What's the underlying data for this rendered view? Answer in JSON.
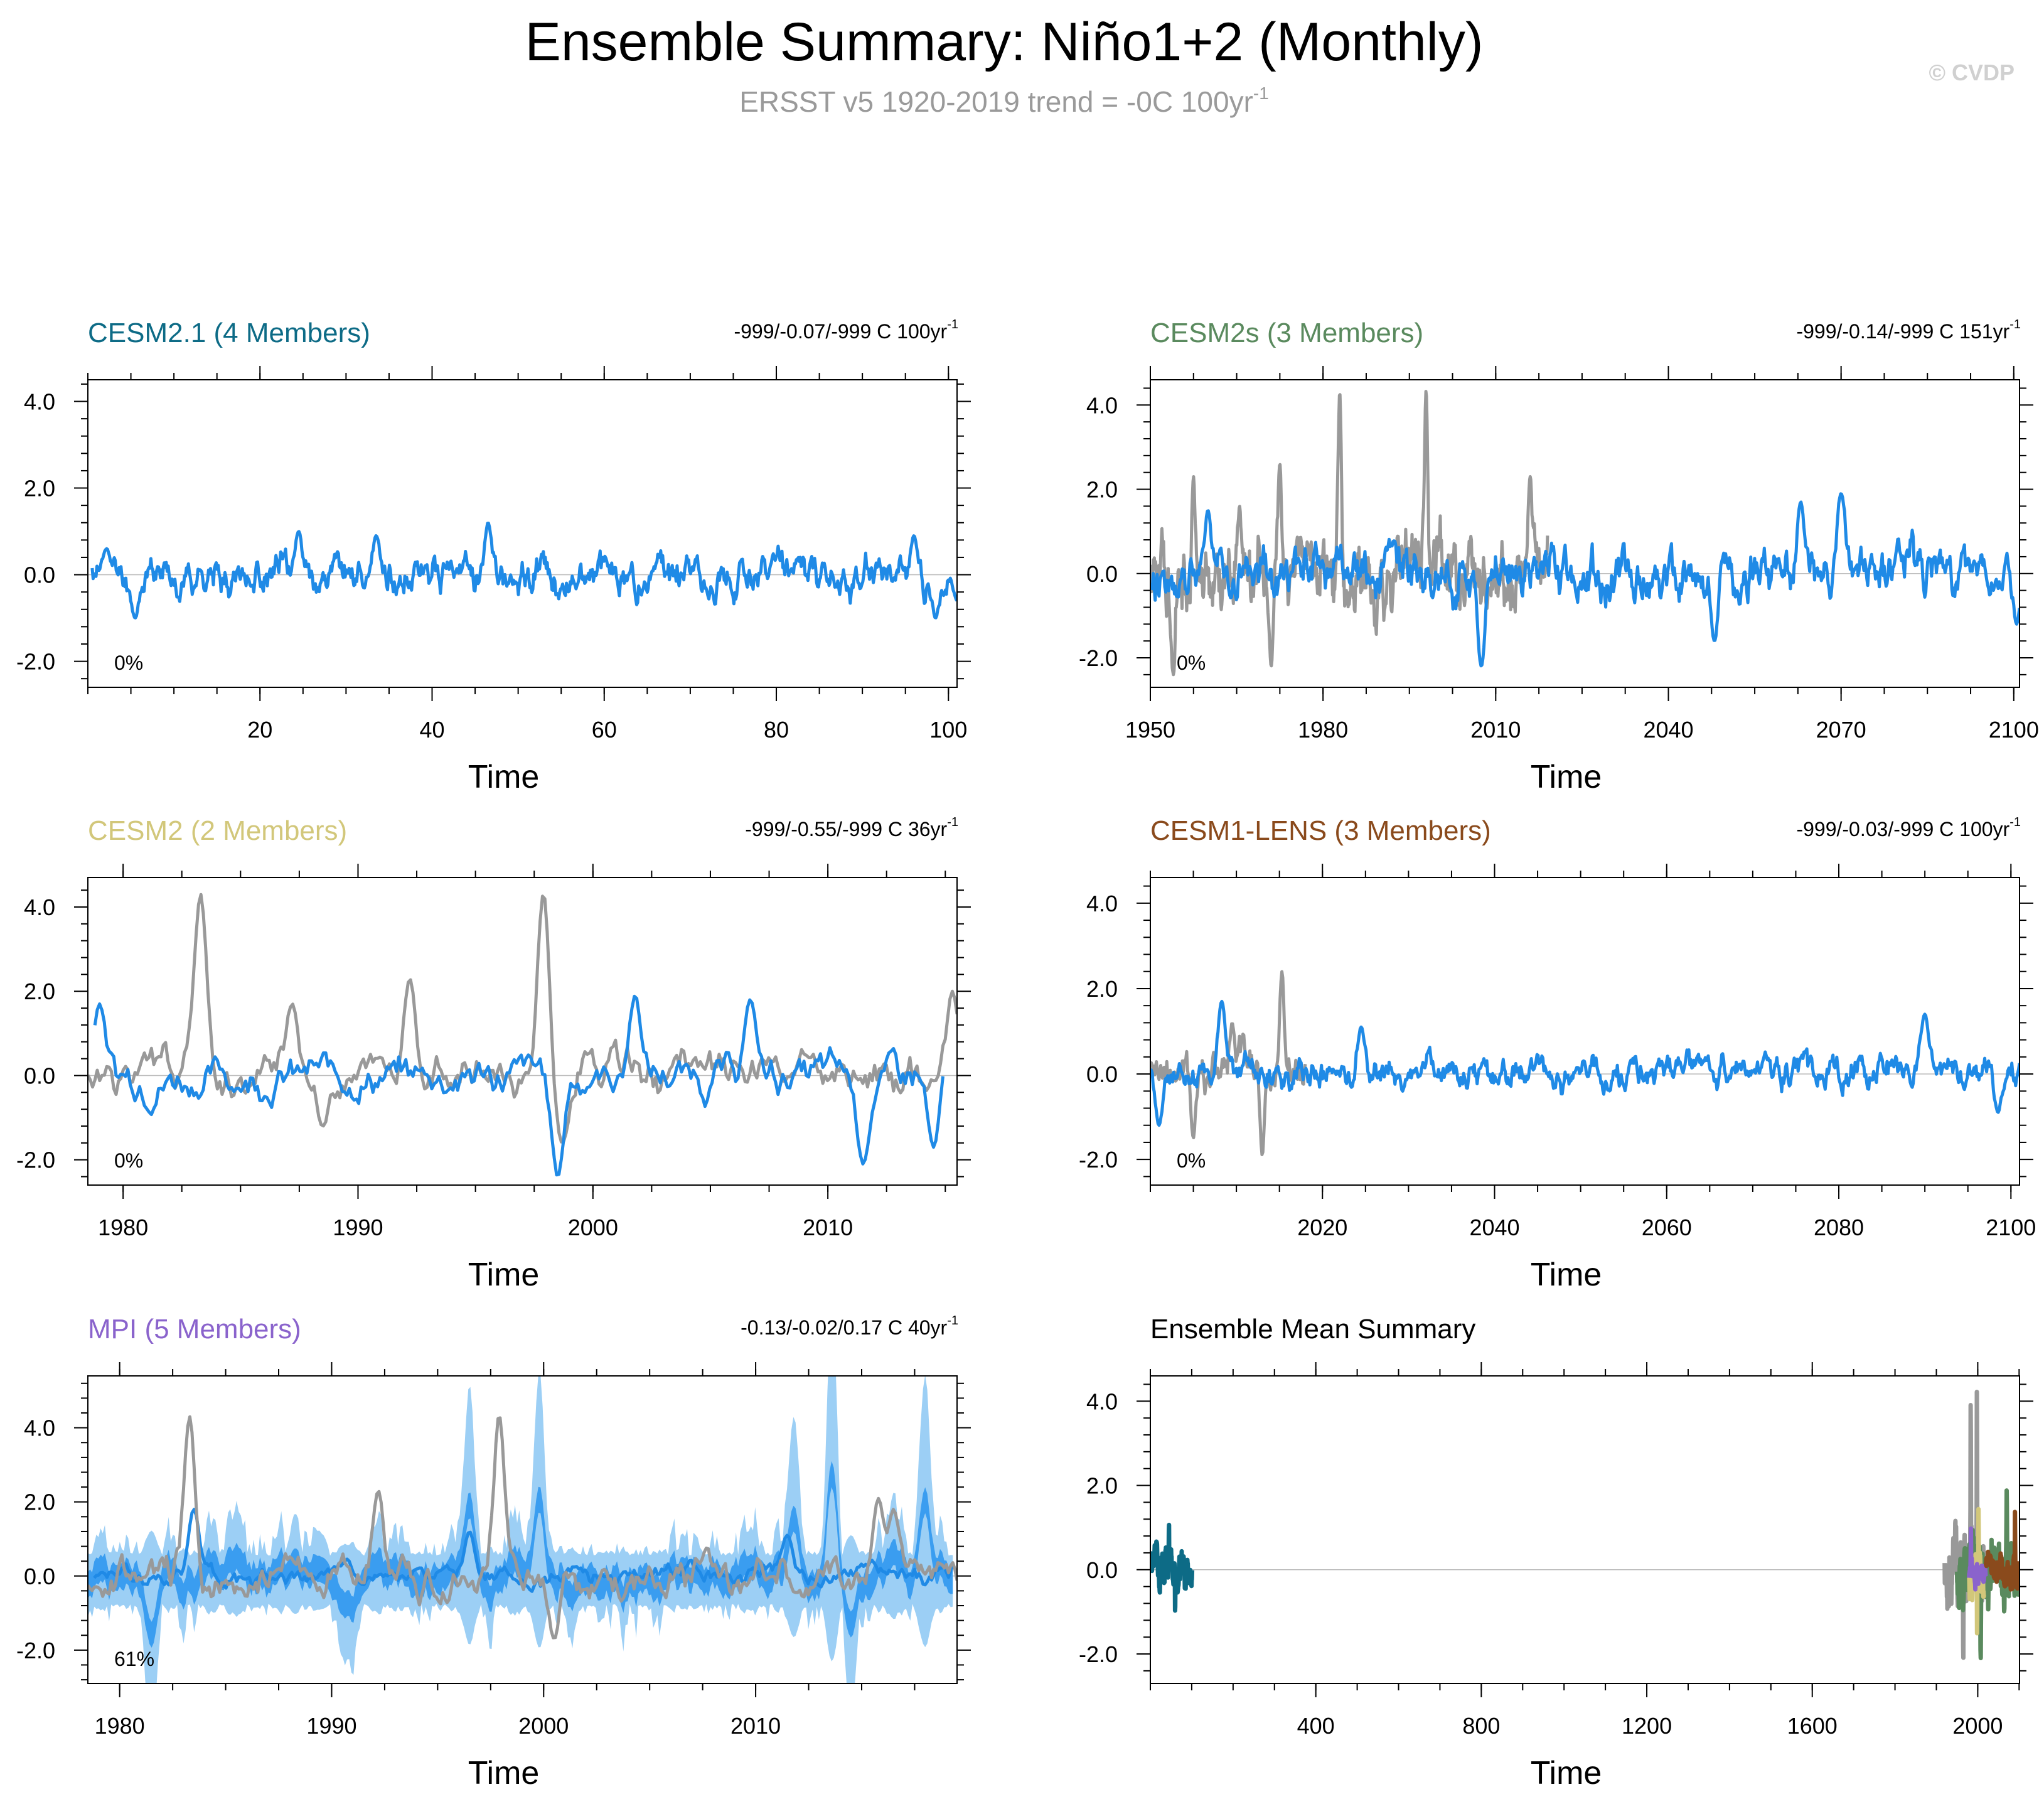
{
  "title": "Ensemble Summary: Niño1+2 (Monthly)",
  "subtitle": "ERSST v5 1920-2019 trend = -0C 100yr",
  "subtitle_sup": "-1",
  "copyright": "© CVDP",
  "colors": {
    "obs": "#999999",
    "model": "#1f8ae6",
    "spread": "#9ccff5",
    "spread_dark": "#3a9df0"
  },
  "chart_data": [
    {
      "type": "line",
      "id": "cesm21",
      "title": "CESM2.1 (4 Members)",
      "title_color": "#0d6b86",
      "trend": "-999/-0.07/-999 C 100yr",
      "trend_sup": "-1",
      "pct": "0%",
      "xlabel": "Time",
      "xlim": [
        0,
        101
      ],
      "ylim": [
        -2.6,
        4.5
      ],
      "xticks": [
        20,
        40,
        60,
        80,
        100
      ],
      "xtick_labels": [
        "20",
        "40",
        "60",
        "80",
        "100"
      ],
      "yticks": [
        -2,
        0,
        2,
        4
      ],
      "ytick_labels": [
        "-2.0",
        "0.0",
        "2.0",
        "4.0"
      ],
      "series": [
        {
          "name": "model",
          "color": "#1f8ae6",
          "x_start": 0.5,
          "x_end": 101,
          "amp": 0.42,
          "seed": 11,
          "peaks": [
            [
              46.5,
              1.2
            ],
            [
              24.5,
              1.0
            ],
            [
              33.5,
              0.9
            ],
            [
              96,
              0.9
            ],
            [
              2.2,
              0.6
            ],
            [
              98.5,
              -1.0
            ],
            [
              5.5,
              -1.0
            ],
            [
              101,
              -0.6
            ]
          ]
        }
      ]
    },
    {
      "type": "line",
      "id": "cesm2s",
      "title": "CESM2s (3 Members)",
      "title_color": "#5a8a5e",
      "trend": "-999/-0.14/-999 C 151yr",
      "trend_sup": "-1",
      "pct": "0%",
      "xlabel": "Time",
      "xlim": [
        1950,
        2101
      ],
      "ylim": [
        -2.7,
        4.6
      ],
      "xticks": [
        1950,
        1980,
        2010,
        2040,
        2070,
        2100
      ],
      "xtick_labels": [
        "1950",
        "1980",
        "2010",
        "2040",
        "2070",
        "2100"
      ],
      "yticks": [
        -2,
        0,
        2,
        4
      ],
      "ytick_labels": [
        "-2.0",
        "0.0",
        "2.0",
        "4.0"
      ],
      "series": [
        {
          "name": "obs",
          "color": "#999999",
          "x_start": 1950,
          "x_end": 2019,
          "amp": 0.85,
          "seed": 21,
          "peaks": [
            [
              1982.9,
              4.3
            ],
            [
              1997.9,
              4.35
            ],
            [
              1972.5,
              2.6
            ],
            [
              1957.5,
              2.3
            ],
            [
              2016,
              2.3
            ],
            [
              1965.5,
              1.6
            ],
            [
              1954,
              -2.4
            ],
            [
              1971,
              -2.2
            ]
          ]
        },
        {
          "name": "model",
          "color": "#1f8ae6",
          "x_start": 1950,
          "x_end": 2101,
          "amp": 0.62,
          "seed": 22,
          "peaks": [
            [
              1960,
              1.5
            ],
            [
              2070,
              1.9
            ],
            [
              2063,
              1.7
            ],
            [
              2007.5,
              -2.2
            ],
            [
              2048,
              -1.6
            ],
            [
              2100.5,
              -1.2
            ]
          ]
        }
      ]
    },
    {
      "type": "line",
      "id": "cesm2",
      "title": "CESM2 (2 Members)",
      "title_color": "#d2c77a",
      "trend": "-999/-0.55/-999 C 36yr",
      "trend_sup": "-1",
      "pct": "0%",
      "xlabel": "Time",
      "xlim": [
        1978.5,
        2015.5
      ],
      "ylim": [
        -2.6,
        4.7
      ],
      "xticks": [
        1980,
        1990,
        2000,
        2010
      ],
      "xtick_labels": [
        "1980",
        "1990",
        "2000",
        "2010"
      ],
      "yticks": [
        -2,
        0,
        2,
        4
      ],
      "ytick_labels": [
        "-2.0",
        "0.0",
        "2.0",
        "4.0"
      ],
      "series": [
        {
          "name": "obs",
          "color": "#999999",
          "x_start": 1978.5,
          "x_end": 2015.5,
          "amp": 0.55,
          "seed": 31,
          "peaks": [
            [
              1983.3,
              4.3
            ],
            [
              1997.9,
              4.35
            ],
            [
              1992.2,
              2.3
            ],
            [
              1987.2,
              1.7
            ],
            [
              2015.3,
              2.0
            ],
            [
              1998.7,
              -1.6
            ],
            [
              1988.5,
              -1.2
            ]
          ]
        },
        {
          "name": "model",
          "color": "#1f8ae6",
          "x_start": 1978.8,
          "x_end": 2014.9,
          "amp": 0.5,
          "seed": 32,
          "peaks": [
            [
              1979,
              1.7
            ],
            [
              2001.8,
              1.9
            ],
            [
              2006.7,
              1.8
            ],
            [
              1998.5,
              -2.4
            ],
            [
              2014.5,
              -1.7
            ],
            [
              2011.5,
              -2.1
            ]
          ]
        }
      ]
    },
    {
      "type": "line",
      "id": "cesm1lens",
      "title": "CESM1-LENS (3 Members)",
      "title_color": "#8a4a1c",
      "trend": "-999/-0.03/-999 C 100yr",
      "trend_sup": "-1",
      "pct": "0%",
      "xlabel": "Time",
      "xlim": [
        2000,
        2101
      ],
      "ylim": [
        -2.6,
        4.6
      ],
      "xticks": [
        2020,
        2040,
        2060,
        2080,
        2100
      ],
      "xtick_labels": [
        "2020",
        "2040",
        "2060",
        "2080",
        "2100"
      ],
      "yticks": [
        -2,
        0,
        2,
        4
      ],
      "ytick_labels": [
        "-2.0",
        "0.0",
        "2.0",
        "4.0"
      ],
      "series": [
        {
          "name": "obs",
          "color": "#999999",
          "x_start": 2000,
          "x_end": 2018,
          "amp": 0.55,
          "seed": 41,
          "peaks": [
            [
              2015.3,
              2.4
            ],
            [
              2009.5,
              1.2
            ],
            [
              2013,
              -1.9
            ],
            [
              2005,
              -1.5
            ]
          ]
        },
        {
          "name": "model",
          "color": "#1f8ae6",
          "x_start": 2000,
          "x_end": 2101,
          "amp": 0.38,
          "seed": 42,
          "peaks": [
            [
              2008.3,
              1.7
            ],
            [
              2090,
              1.4
            ],
            [
              2024.5,
              1.1
            ],
            [
              2001,
              -1.2
            ],
            [
              2098.5,
              -0.9
            ]
          ]
        }
      ]
    },
    {
      "type": "area",
      "id": "mpi",
      "title": "MPI (5 Members)",
      "title_color": "#8a63cc",
      "trend": "-0.13/-0.02/0.17 C 40yr",
      "trend_sup": "-1",
      "pct": "61%",
      "xlabel": "Time",
      "xlim": [
        1978.5,
        2019.5
      ],
      "ylim": [
        -2.9,
        5.4
      ],
      "xticks": [
        1980,
        1990,
        2000,
        2010
      ],
      "xtick_labels": [
        "1980",
        "1990",
        "2000",
        "2010"
      ],
      "yticks": [
        -2,
        0,
        2,
        4
      ],
      "ytick_labels": [
        "-2.0",
        "0.0",
        "2.0",
        "4.0"
      ],
      "series": [
        {
          "name": "spread",
          "color": "#9ccff5",
          "x_start": 1978.5,
          "x_end": 2019.3,
          "amp": 0.85,
          "seed": 51,
          "band": 1,
          "peaks": [
            [
              2013.6,
              5.2
            ],
            [
              1999.8,
              4.0
            ],
            [
              1996.5,
              3.7
            ],
            [
              2011.8,
              3.0
            ],
            [
              2018,
              3.9
            ],
            [
              1981.5,
              -2.7
            ],
            [
              2014.5,
              -2.2
            ]
          ]
        },
        {
          "name": "model",
          "color": "#1f8ae6",
          "x_start": 1978.8,
          "x_end": 2019.3,
          "amp": 0.28,
          "seed": 52,
          "peaks": [
            [
              1983.5,
              1.8
            ],
            [
              1996.5,
              1.2
            ],
            [
              2011.5,
              1.1
            ]
          ]
        },
        {
          "name": "obs",
          "color": "#999999",
          "x_start": 1978.5,
          "x_end": 2019.5,
          "amp": 0.55,
          "seed": 53,
          "peaks": [
            [
              1983.3,
              4.3
            ],
            [
              1997.9,
              4.35
            ],
            [
              1992.2,
              2.3
            ],
            [
              2015.8,
              2.1
            ],
            [
              2016.5,
              1.8
            ],
            [
              2000.5,
              -1.7
            ]
          ]
        }
      ]
    },
    {
      "type": "line",
      "id": "ensmean",
      "title": "Ensemble Mean Summary",
      "title_color": "#000000",
      "trend": "",
      "trend_sup": "",
      "pct": "",
      "xlabel": "Time",
      "xlim": [
        0,
        2101
      ],
      "ylim": [
        -2.7,
        4.6
      ],
      "xticks": [
        400,
        800,
        1200,
        1600,
        2000
      ],
      "xtick_labels": [
        "400",
        "800",
        "1200",
        "1600",
        "2000"
      ],
      "yticks": [
        -2,
        0,
        2,
        4
      ],
      "ytick_labels": [
        "-2.0",
        "0.0",
        "2.0",
        "4.0"
      ],
      "series": [
        {
          "name": "CESM2.1",
          "color": "#0d6b86",
          "x_start": 1,
          "x_end": 101,
          "amp": 0.4,
          "seed": 61,
          "dense": 1,
          "peaks": [
            [
              45,
              1.2
            ],
            [
              60,
              -1.1
            ]
          ]
        },
        {
          "name": "obs",
          "color": "#999999",
          "x_start": 1920,
          "x_end": 2019,
          "amp": 0.85,
          "seed": 62,
          "dense": 1,
          "peaks": [
            [
              1983,
              4.3
            ],
            [
              1998,
              4.35
            ],
            [
              1965,
              -2.4
            ]
          ]
        },
        {
          "name": "CESM2s",
          "color": "#5a8a5e",
          "x_start": 1950,
          "x_end": 2101,
          "amp": 0.6,
          "seed": 63,
          "dense": 1,
          "peaks": [
            [
              2070,
              1.9
            ],
            [
              2007,
              -2.2
            ]
          ]
        },
        {
          "name": "CESM2",
          "color": "#d2c77a",
          "x_start": 1979,
          "x_end": 2015,
          "amp": 0.6,
          "seed": 64,
          "dense": 1,
          "peaks": [
            [
              2002,
              1.9
            ],
            [
              1998.5,
              -2.4
            ]
          ]
        },
        {
          "name": "MPI",
          "color": "#8a63cc",
          "x_start": 1979,
          "x_end": 2019,
          "amp": 0.32,
          "seed": 65,
          "dense": 1,
          "peaks": [
            [
              1983.5,
              1.0
            ]
          ]
        },
        {
          "name": "CESM1-LENS",
          "color": "#8a4a1c",
          "x_start": 2020,
          "x_end": 2101,
          "amp": 0.4,
          "seed": 66,
          "dense": 1,
          "peaks": [
            [
              2090,
              1.4
            ]
          ]
        }
      ]
    }
  ]
}
